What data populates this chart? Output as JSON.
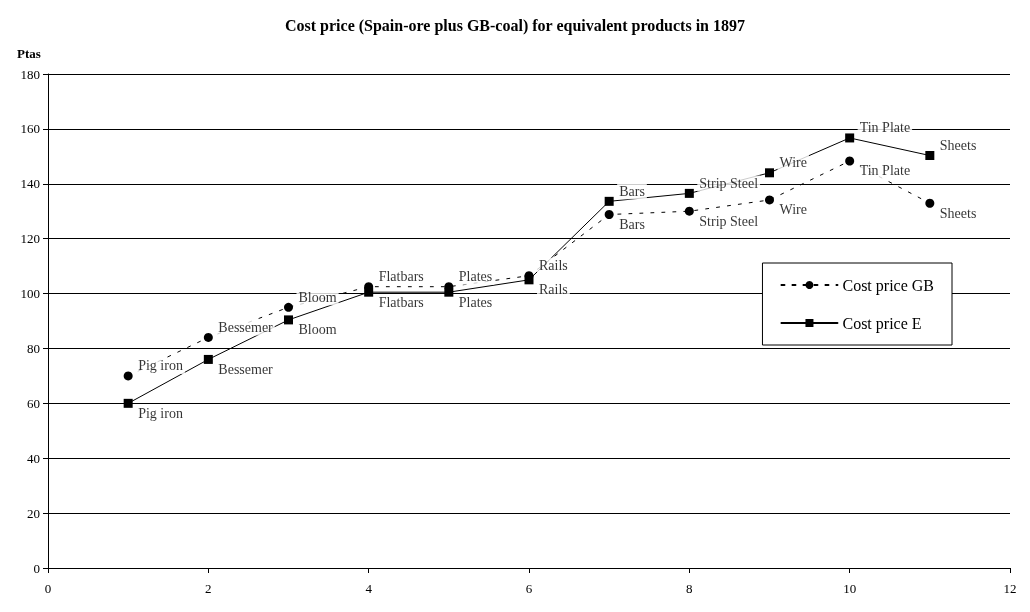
{
  "chart_data": {
    "type": "line",
    "title": "Cost price (Spain-ore plus GB-coal) for equivalent products in 1897",
    "ylabel": "Ptas",
    "x": [
      1,
      2,
      3,
      4,
      5,
      6,
      7,
      8,
      9,
      10,
      11
    ],
    "series": [
      {
        "name": "Cost price GB",
        "color": "#000000",
        "marker": "circle",
        "line_style": "dashed",
        "values": [
          70,
          84,
          95,
          102.5,
          102.5,
          106.5,
          128.8,
          130,
          134.1,
          148.3,
          132.9
        ]
      },
      {
        "name": "Cost price E",
        "color": "#000000",
        "marker": "square",
        "line_style": "solid",
        "values": [
          60,
          76,
          90.4,
          100.5,
          100.5,
          105,
          133.6,
          136.5,
          144,
          156.7,
          150.3
        ]
      }
    ],
    "annotations": [
      {
        "text": "Pig iron",
        "x": 1,
        "y": 70
      },
      {
        "text": "Pig iron",
        "x": 1,
        "y": 60
      },
      {
        "text": "Bessemer",
        "x": 2,
        "y": 84
      },
      {
        "text": "Bessemer",
        "x": 2,
        "y": 76
      },
      {
        "text": "Bloom",
        "x": 3,
        "y": 95
      },
      {
        "text": "Bloom",
        "x": 3,
        "y": 90.4
      },
      {
        "text": "Flatbars",
        "x": 4,
        "y": 102.5
      },
      {
        "text": "Flatbars",
        "x": 4,
        "y": 100.5
      },
      {
        "text": "Plates",
        "x": 5,
        "y": 102.5
      },
      {
        "text": "Plates",
        "x": 5,
        "y": 100.5
      },
      {
        "text": "Rails",
        "x": 6,
        "y": 106.5
      },
      {
        "text": "Rails",
        "x": 6,
        "y": 105
      },
      {
        "text": "Bars",
        "x": 7,
        "y": 128.8
      },
      {
        "text": "Bars",
        "x": 7,
        "y": 133.6
      },
      {
        "text": "Strip Steel",
        "x": 8,
        "y": 130
      },
      {
        "text": "Strip Steel",
        "x": 8,
        "y": 136.5
      },
      {
        "text": "Wire",
        "x": 9,
        "y": 134.1
      },
      {
        "text": "Wire",
        "x": 9,
        "y": 144
      },
      {
        "text": "Tin Plate",
        "x": 10,
        "y": 148.3
      },
      {
        "text": "Tin Plate",
        "x": 10,
        "y": 156.7
      },
      {
        "text": "Sheets",
        "x": 11,
        "y": 132.9
      },
      {
        "text": "Sheets",
        "x": 11,
        "y": 150.3
      }
    ],
    "xlim": [
      0,
      12
    ],
    "xticks": [
      0,
      2,
      4,
      6,
      8,
      10,
      12
    ],
    "ylim": [
      0,
      180
    ],
    "yticks": [
      0,
      20,
      40,
      60,
      80,
      100,
      120,
      140,
      160,
      180
    ],
    "grid": "y",
    "legend": "right"
  }
}
